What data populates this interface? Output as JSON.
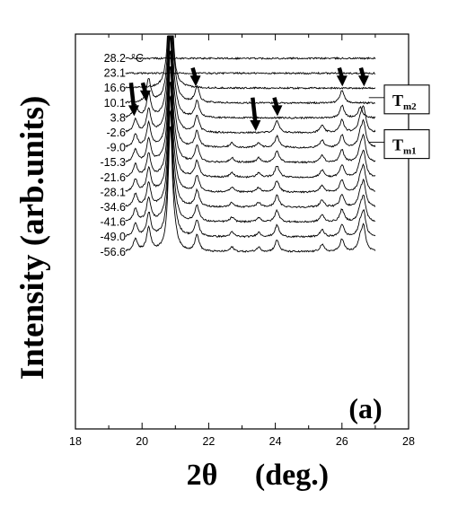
{
  "chart_data": {
    "type": "line",
    "title": "",
    "xlabel": "2θ",
    "xlabel_unit": "(deg.)",
    "ylabel": "Intensity (arb.units)",
    "panel_label": "(a)",
    "xlim": [
      18,
      28
    ],
    "x_ticks": [
      "18",
      "20",
      "22",
      "24",
      "26",
      "28"
    ],
    "data_x_range": [
      19.5,
      27.0
    ],
    "temperature_unit": "°C",
    "series": [
      {
        "name": "28.2"
      },
      {
        "name": "23.1"
      },
      {
        "name": "16.6"
      },
      {
        "name": "10.1"
      },
      {
        "name": "3.8"
      },
      {
        "name": "-2.6"
      },
      {
        "name": "-9.0"
      },
      {
        "name": "-15.3"
      },
      {
        "name": "-21.6"
      },
      {
        "name": "-28.1"
      },
      {
        "name": "-34.6"
      },
      {
        "name": "-41.6"
      },
      {
        "name": "-49.0"
      },
      {
        "name": "-56.6"
      }
    ],
    "peaks": [
      {
        "position": 19.8,
        "height": 1.4,
        "present_from": 4
      },
      {
        "position": 20.2,
        "height": 2.6,
        "present_from": 3
      },
      {
        "position": 20.85,
        "height": 14,
        "present_from": 2
      },
      {
        "position": 21.0,
        "height": 0.9,
        "present_from": 3
      },
      {
        "position": 21.65,
        "height": 1.8,
        "present_from": 3
      },
      {
        "position": 22.7,
        "height": 0.5,
        "present_from": 6
      },
      {
        "position": 23.5,
        "height": 0.5,
        "present_from": 6
      },
      {
        "position": 24.05,
        "height": 1.3,
        "present_from": 5
      },
      {
        "position": 25.4,
        "height": 0.8,
        "present_from": 5
      },
      {
        "position": 26.0,
        "height": 1.4,
        "present_from": 3
      },
      {
        "position": 26.55,
        "height": 1.2,
        "present_from": 4
      },
      {
        "position": 26.65,
        "height": 2.6,
        "present_from": 5
      }
    ],
    "annotations": [
      {
        "text": "T",
        "subscript": "m2",
        "target_x": 26.7,
        "target_series": "10.1"
      },
      {
        "text": "T",
        "subscript": "m1",
        "target_x": 26.7,
        "target_series": "-9.0"
      }
    ],
    "arrows": [
      {
        "x": 19.75,
        "from_series": "16.6",
        "to_series": "3.8"
      },
      {
        "x": 20.1,
        "from_series": "16.6",
        "to_series": "10.1"
      },
      {
        "x": 21.6,
        "from_series": "23.1",
        "to_series": "16.6"
      },
      {
        "x": 23.4,
        "from_series": "10.1",
        "to_series": "-2.6"
      },
      {
        "x": 24.05,
        "from_series": "10.1",
        "to_series": "3.8"
      },
      {
        "x": 26.0,
        "from_series": "23.1",
        "to_series": "16.6"
      },
      {
        "x": 26.65,
        "from_series": "23.1",
        "to_series": "16.6"
      }
    ],
    "grid": false,
    "legend": "none"
  }
}
